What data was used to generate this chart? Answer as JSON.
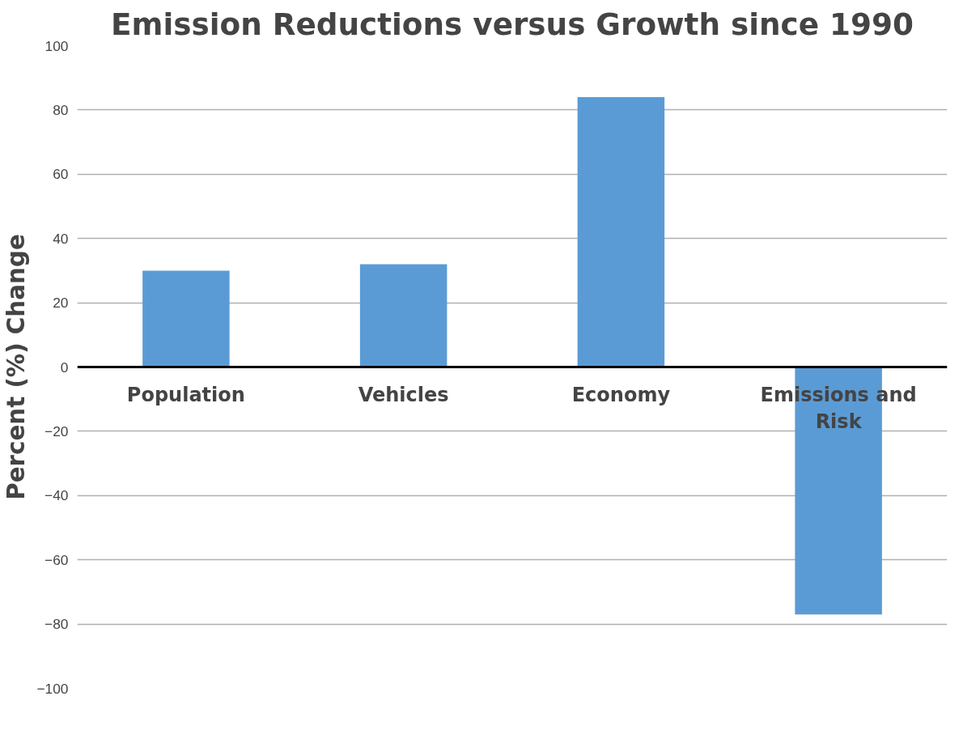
{
  "chart_data": {
    "type": "bar",
    "title": "Emission Reductions versus Growth since 1990",
    "ylabel": "Percent (%) Change",
    "categories": [
      "Population",
      "Vehicles",
      "Economy",
      "Emissions and Risk"
    ],
    "values": [
      30,
      32,
      84,
      -77
    ],
    "color": "#5b9bd5",
    "ylim": [
      -100,
      100
    ],
    "yticks": [
      -100,
      -80,
      -60,
      -40,
      -20,
      0,
      20,
      40,
      60,
      80,
      100
    ],
    "grid": "y"
  }
}
